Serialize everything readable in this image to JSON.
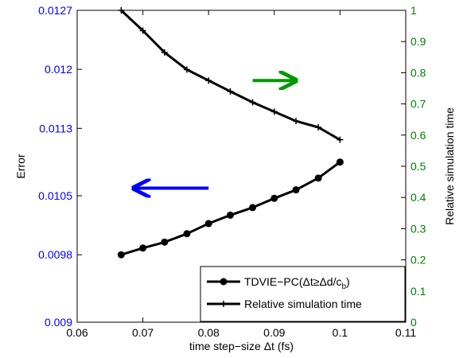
{
  "chart_data": {
    "type": "line",
    "xlabel": "time step−size Δt (fs)",
    "ylabel_left": "Error",
    "ylabel_right": "Relative simulation time",
    "x_ticks": [
      "0.06",
      "0.07",
      "0.08",
      "0.09",
      "0.1",
      "0.11"
    ],
    "x_tick_values": [
      0.06,
      0.07,
      0.08,
      0.09,
      0.1,
      0.11
    ],
    "xlim": [
      0.06,
      0.11
    ],
    "y_left_ticks": [
      "0.009",
      "0.0098",
      "0.0105",
      "0.0113",
      "0.012",
      "0.0127"
    ],
    "y_left_tick_values": [
      0.009,
      0.0098,
      0.0105,
      0.0113,
      0.012,
      0.0127
    ],
    "ylim_left": [
      0.009,
      0.0127
    ],
    "y_right_ticks": [
      "0",
      "0.1",
      "0.2",
      "0.3",
      "0.4",
      "0.5",
      "0.6",
      "0.7",
      "0.8",
      "0.9",
      "1"
    ],
    "y_right_tick_values": [
      0,
      0.1,
      0.2,
      0.3,
      0.4,
      0.5,
      0.6,
      0.7,
      0.8,
      0.9,
      1.0
    ],
    "ylim_right": [
      0,
      1
    ],
    "grid": false,
    "legend_position": "bottom-right",
    "series": [
      {
        "name": "TDVIE−PC(Δt≥Δd/c",
        "name_subscript": "b",
        "name_suffix": ")",
        "axis": "left",
        "marker": "circle",
        "color": "#000000",
        "x": [
          0.0667,
          0.07,
          0.0733,
          0.0767,
          0.08,
          0.0833,
          0.0867,
          0.09,
          0.0933,
          0.0967,
          0.1
        ],
        "y": [
          0.0098,
          0.00988,
          0.00995,
          0.01005,
          0.01017,
          0.01027,
          0.01036,
          0.01047,
          0.01057,
          0.01071,
          0.0109
        ]
      },
      {
        "name": "Relative simulation time",
        "axis": "right",
        "marker": "plus",
        "color": "#000000",
        "x": [
          0.0667,
          0.07,
          0.0733,
          0.0767,
          0.08,
          0.0833,
          0.0867,
          0.09,
          0.0933,
          0.0967,
          0.1
        ],
        "y": [
          1.0,
          0.935,
          0.865,
          0.81,
          0.775,
          0.74,
          0.705,
          0.675,
          0.645,
          0.625,
          0.585
        ]
      }
    ],
    "annotations": [
      {
        "type": "arrow",
        "direction": "left",
        "color": "#0000ff",
        "x_from": 0.08,
        "x_to": 0.0686,
        "y_left": 0.01059
      },
      {
        "type": "arrow",
        "direction": "right",
        "color": "#009900",
        "x_from": 0.0867,
        "x_to": 0.0933,
        "y_right": 0.775
      }
    ]
  }
}
